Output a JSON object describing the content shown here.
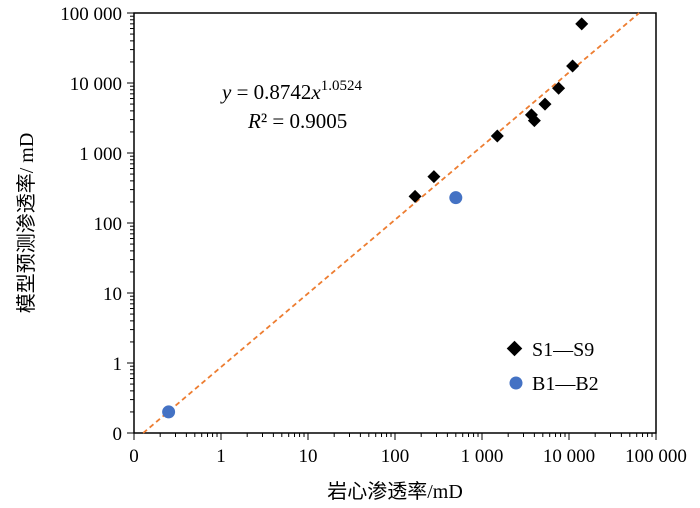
{
  "chart_data": {
    "type": "scatter",
    "x_scale": "log",
    "y_scale": "log",
    "xlabel": "岩心渗透率/mD",
    "ylabel": "模型预测渗透率/ mD",
    "x_ticks": [
      {
        "value": 0.1,
        "label": "0"
      },
      {
        "value": 1,
        "label": "1"
      },
      {
        "value": 10,
        "label": "10"
      },
      {
        "value": 100,
        "label": "100"
      },
      {
        "value": 1000,
        "label": "1 000"
      },
      {
        "value": 10000,
        "label": "10 000"
      },
      {
        "value": 100000,
        "label": "100 000"
      }
    ],
    "y_ticks": [
      {
        "value": 0.1,
        "label": "0"
      },
      {
        "value": 1,
        "label": "1"
      },
      {
        "value": 10,
        "label": "10"
      },
      {
        "value": 100,
        "label": "100"
      },
      {
        "value": 1000,
        "label": "1 000"
      },
      {
        "value": 10000,
        "label": "10 000"
      },
      {
        "value": 100000,
        "label": "100 000"
      }
    ],
    "xlim": [
      0.1,
      100000
    ],
    "ylim": [
      0.1,
      100000
    ],
    "grid": false,
    "legend_position": "bottom-right",
    "series": [
      {
        "name": "S1—S9",
        "marker": "diamond",
        "color": "#000000",
        "points": [
          {
            "x": 170,
            "y": 240
          },
          {
            "x": 280,
            "y": 460
          },
          {
            "x": 1500,
            "y": 1750
          },
          {
            "x": 3700,
            "y": 3500
          },
          {
            "x": 4000,
            "y": 2900
          },
          {
            "x": 5300,
            "y": 5000
          },
          {
            "x": 7600,
            "y": 8400
          },
          {
            "x": 11000,
            "y": 17500
          },
          {
            "x": 14000,
            "y": 70000
          }
        ]
      },
      {
        "name": "B1—B2",
        "marker": "circle",
        "color": "#4472c4",
        "points": [
          {
            "x": 0.25,
            "y": 0.2
          },
          {
            "x": 500,
            "y": 230
          }
        ]
      }
    ],
    "trendline": {
      "equation_prefix": "y",
      "equation_mid": " = 0.8742",
      "equation_var": "x",
      "equation_exp": "1.0524",
      "r2_prefix": "R",
      "r2_rest": "² = 0.9005",
      "a": 0.8742,
      "b": 1.0524,
      "color": "#ed7d31",
      "style": "dashed"
    }
  }
}
